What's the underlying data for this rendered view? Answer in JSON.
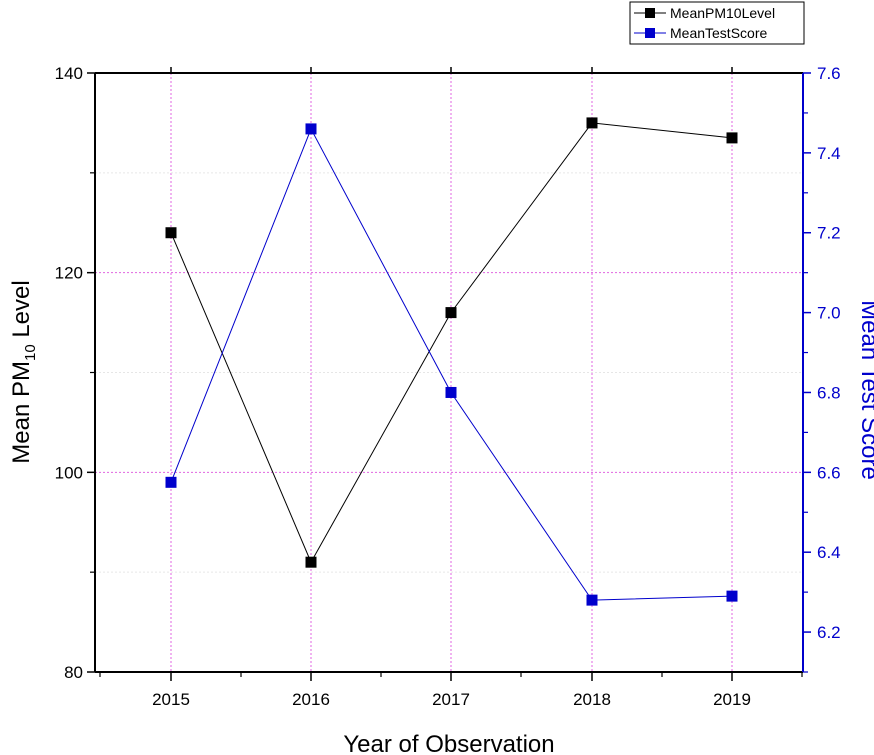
{
  "chart_data": {
    "type": "line",
    "x": [
      "2015",
      "2016",
      "2017",
      "2018",
      "2019"
    ],
    "xlabel": "Year of Observation",
    "ylabel_left_prefix": "Mean PM",
    "ylabel_left_sub": "10",
    "ylabel_left_suffix": " Level",
    "ylabel_right": "Mean Test Score",
    "ylim_left": [
      80,
      140
    ],
    "ylim_right": [
      6.1,
      7.6
    ],
    "yticks_left": [
      "80",
      "100",
      "120",
      "140"
    ],
    "yticks_right": [
      "6.2",
      "6.4",
      "6.6",
      "6.8",
      "7.0",
      "7.2",
      "7.4",
      "7.6"
    ],
    "grid": true,
    "legend_position": "top-right",
    "series": [
      {
        "name": "MeanPM10Level",
        "axis": "left",
        "color": "#000000",
        "values": [
          124,
          91,
          116,
          135,
          133.5
        ]
      },
      {
        "name": "MeanTestScore",
        "axis": "right",
        "color": "#0000cc",
        "values": [
          6.575,
          7.46,
          6.8,
          6.28,
          6.29
        ]
      }
    ],
    "colors": {
      "grid": "#e066e0",
      "right_axis": "#0000cc"
    }
  }
}
